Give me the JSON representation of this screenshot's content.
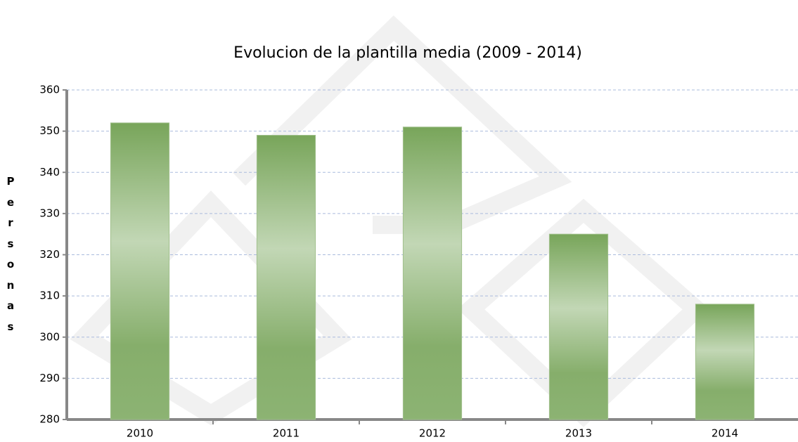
{
  "chart_data": {
    "type": "bar",
    "title": "Evolucion de la plantilla media (2009 - 2014)",
    "y_label": "Personas",
    "categories": [
      "2010",
      "2011",
      "2012",
      "2013",
      "2014"
    ],
    "values": [
      352,
      349,
      351,
      325,
      308
    ],
    "color": "#78a55a",
    "ylim": [
      280,
      360
    ],
    "yticks": [
      280,
      290,
      300,
      310,
      320,
      330,
      340,
      350,
      360
    ],
    "grid": true
  }
}
